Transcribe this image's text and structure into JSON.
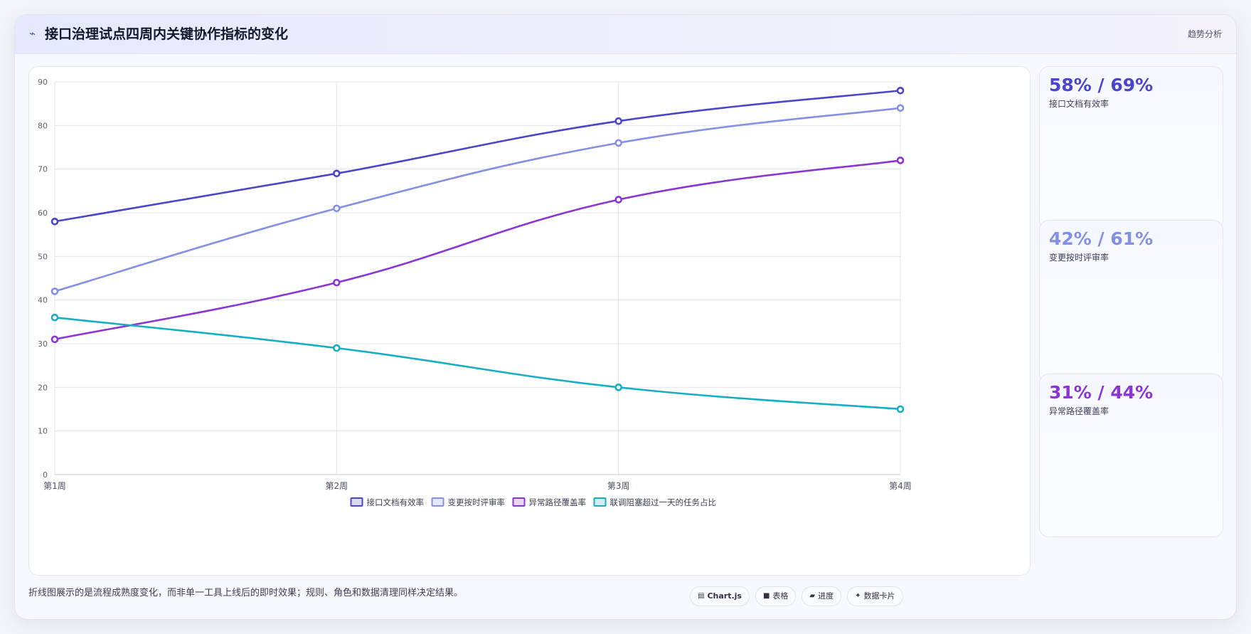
{
  "header": {
    "title": "接口治理试点四周内关键协作指标的变化",
    "tag": "趋势分析"
  },
  "chart_data": {
    "type": "line",
    "title": "",
    "xlabel": "",
    "ylabel": "",
    "categories": [
      "第1周",
      "第2周",
      "第3周",
      "第4周"
    ],
    "ylim": [
      0,
      90
    ],
    "yticks": [
      0,
      10,
      20,
      30,
      40,
      50,
      60,
      70,
      80,
      90
    ],
    "grid": true,
    "legend_position": "bottom",
    "series": [
      {
        "name": "接口文档有效率",
        "color": "#4b45cc",
        "values": [
          58,
          69,
          81,
          88
        ]
      },
      {
        "name": "变更按时评审率",
        "color": "#8490e3",
        "values": [
          42,
          61,
          76,
          84
        ]
      },
      {
        "name": "异常路径覆盖率",
        "color": "#8b35d6",
        "values": [
          31,
          44,
          63,
          72
        ]
      },
      {
        "name": "联调阻塞超过一天的任务占比",
        "color": "#16aec4",
        "values": [
          36,
          29,
          20,
          15
        ]
      }
    ]
  },
  "stats": [
    {
      "value": "58% / 69%",
      "label": "接口文档有效率",
      "color": "#4b45cc"
    },
    {
      "value": "42% / 61%",
      "label": "变更按时评审率",
      "color": "#8490e3"
    },
    {
      "value": "31% / 44%",
      "label": "异常路径覆盖率",
      "color": "#8b35d6"
    }
  ],
  "footnote": "折线图展示的是流程成熟度变化，而非单一工具上线后的即时效果；规则、角色和数据清理同样决定结果。",
  "chips": [
    {
      "icon": "▤",
      "label": "Chart.js"
    },
    {
      "icon": "■",
      "label": "表格"
    },
    {
      "icon": "▰",
      "label": "进度"
    },
    {
      "icon": "✦",
      "label": "数据卡片"
    }
  ]
}
